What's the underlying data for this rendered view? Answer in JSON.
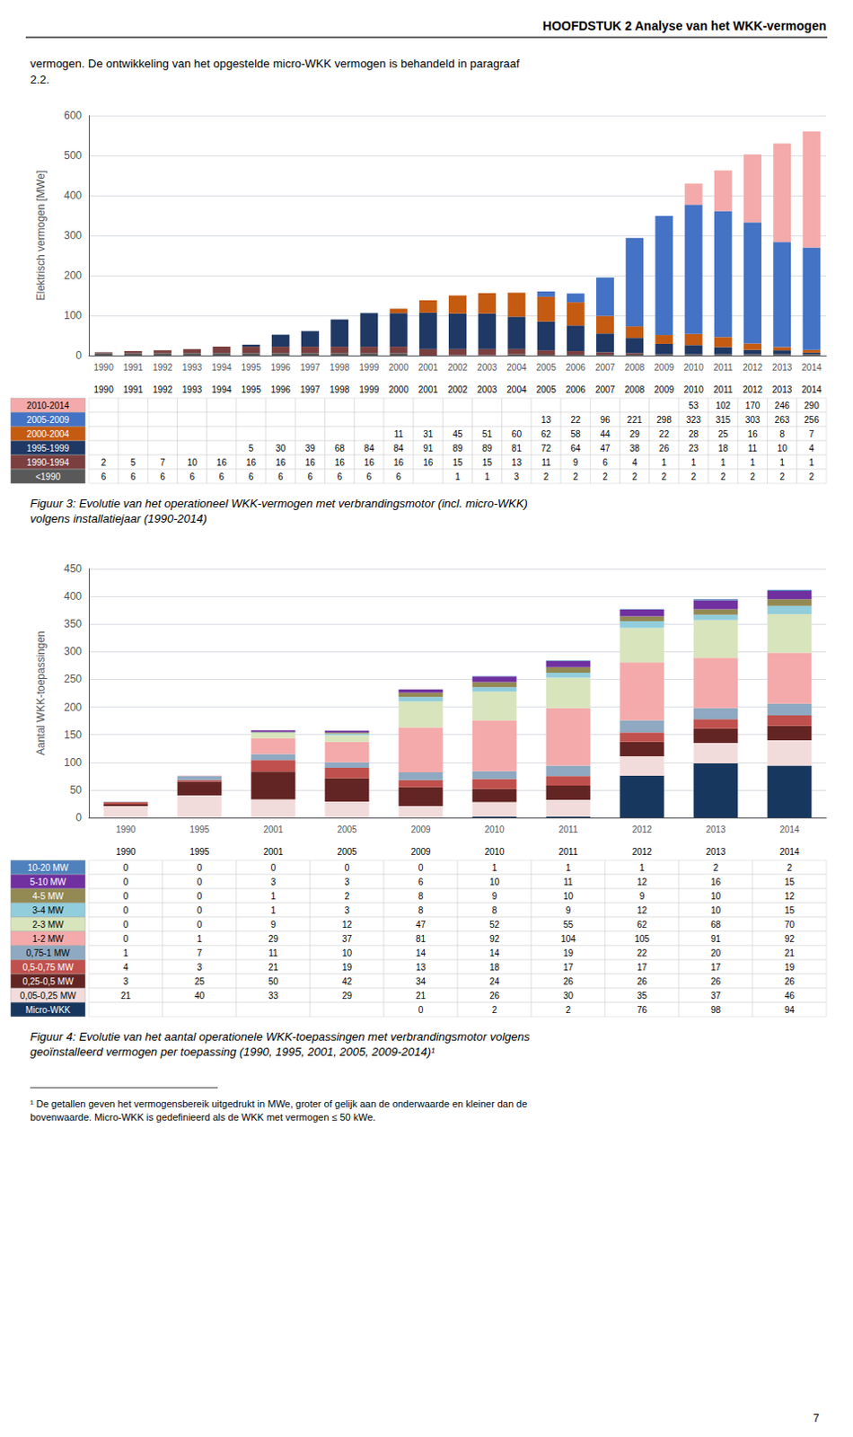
{
  "chart_data": [
    {
      "type": "bar",
      "title": "Figuur 3: Evolutie van het operationeel WKK-vermogen met verbrandingsmotor (incl. micro-WKK)\nvolgens installatiejaar (1990-2014)",
      "annotations": [
        "HOOFDSTUK 2 Analyse van het WKK-vermogen",
        "vermogen. De ontwikkeling van het opgestelde micro-WKK vermogen is behandeld in paragraaf\n2.2."
      ],
      "ylabel": "Elektrisch vermogen [MWe]",
      "categories": [
        "1990",
        "1991",
        "1992",
        "1993",
        "1994",
        "1995",
        "1996",
        "1997",
        "1998",
        "1999",
        "2000",
        "2001",
        "2002",
        "2003",
        "2004",
        "2005",
        "2006",
        "2007",
        "2008",
        "2009",
        "2010",
        "2011",
        "2012",
        "2013",
        "2014"
      ],
      "series": [
        {
          "name": "<1990",
          "color": "#595959",
          "values": [
            6,
            6,
            6,
            6,
            6,
            6,
            6,
            6,
            6,
            6,
            6,
            0,
            1,
            1,
            3,
            2,
            2,
            2,
            2,
            2,
            2,
            2,
            2,
            2,
            2
          ],
          "value_labels": [
            "6",
            "6",
            "6",
            "6",
            "6",
            "6",
            "6",
            "6",
            "6",
            "6",
            "6",
            null,
            "1",
            "1",
            "3",
            "2",
            "2",
            "2",
            "2",
            "2",
            "2",
            "2",
            "2",
            "2",
            "2"
          ]
        },
        {
          "name": "1990-1994",
          "color": "#7B3F3F",
          "values": [
            2,
            5,
            7,
            10,
            16,
            16,
            16,
            16,
            16,
            16,
            16,
            16,
            15,
            15,
            13,
            11,
            9,
            6,
            4,
            1,
            1,
            1,
            1,
            1,
            1
          ]
        },
        {
          "name": "1995-1999",
          "color": "#1F3864",
          "values": [
            0,
            0,
            0,
            0,
            0,
            5,
            30,
            39,
            68,
            84,
            84,
            91,
            89,
            89,
            81,
            72,
            64,
            47,
            38,
            26,
            23,
            18,
            11,
            10,
            4
          ],
          "value_labels": [
            null,
            null,
            null,
            null,
            null,
            "5",
            "30",
            "39",
            "68",
            "84",
            "84",
            "91",
            "89",
            "89",
            "81",
            "72",
            "64",
            "47",
            "38",
            "26",
            "23",
            "18",
            "11",
            "10",
            "4"
          ]
        },
        {
          "name": "2000-2004",
          "color": "#C55A11",
          "values": [
            0,
            0,
            0,
            0,
            0,
            0,
            0,
            0,
            0,
            0,
            11,
            31,
            45,
            51,
            60,
            62,
            58,
            44,
            29,
            22,
            28,
            25,
            16,
            8,
            7
          ],
          "value_labels": [
            null,
            null,
            null,
            null,
            null,
            null,
            null,
            null,
            null,
            null,
            "11",
            "31",
            "45",
            "51",
            "60",
            "62",
            "58",
            "44",
            "29",
            "22",
            "28",
            "25",
            "16",
            "8",
            "7"
          ]
        },
        {
          "name": "2005-2009",
          "color": "#4472C4",
          "values": [
            0,
            0,
            0,
            0,
            0,
            0,
            0,
            0,
            0,
            0,
            0,
            0,
            0,
            0,
            0,
            13,
            22,
            96,
            221,
            298,
            323,
            315,
            303,
            263,
            256
          ],
          "value_labels": [
            null,
            null,
            null,
            null,
            null,
            null,
            null,
            null,
            null,
            null,
            null,
            null,
            null,
            null,
            null,
            "13",
            "22",
            "96",
            "221",
            "298",
            "323",
            "315",
            "303",
            "263",
            "256"
          ]
        },
        {
          "name": "2010-2014",
          "color": "#F4AAAA",
          "values": [
            0,
            0,
            0,
            0,
            0,
            0,
            0,
            0,
            0,
            0,
            0,
            0,
            0,
            0,
            0,
            0,
            0,
            0,
            0,
            0,
            53,
            102,
            170,
            246,
            290
          ],
          "value_labels": [
            null,
            null,
            null,
            null,
            null,
            null,
            null,
            null,
            null,
            null,
            null,
            null,
            null,
            null,
            null,
            null,
            null,
            null,
            null,
            null,
            "53",
            "102",
            "170",
            "246",
            "290"
          ]
        }
      ],
      "ylim": [
        0,
        600
      ],
      "yticks": [
        0,
        100,
        200,
        300,
        400,
        500,
        600
      ],
      "stacked": true,
      "grid": true
    },
    {
      "type": "bar",
      "title": "Figuur 4: Evolutie van het aantal operationele WKK-toepassingen met verbrandingsmotor volgens\ngeoïnstalleerd vermogen per toepassing (1990, 1995, 2001, 2005, 2009-2014)¹",
      "annotations": [
        "¹ De getallen geven het vermogensbereik uitgedrukt in MWe, groter of gelijk aan de onderwaarde en kleiner dan de\nbovenwaarde. Micro-WKK is gedefinieerd als de WKK met vermogen ≤ 50 kWe.",
        "7"
      ],
      "ylabel": "Aantal WKK-toepassingen",
      "categories": [
        "1990",
        "1995",
        "2001",
        "2005",
        "2009",
        "2010",
        "2011",
        "2012",
        "2013",
        "2014"
      ],
      "series": [
        {
          "name": "Micro-WKK",
          "color": "#17375E",
          "values": [
            0,
            0,
            0,
            0,
            0,
            2,
            2,
            76,
            98,
            94
          ],
          "value_labels": [
            null,
            null,
            null,
            null,
            "0",
            "2",
            "2",
            "76",
            "98",
            "94"
          ]
        },
        {
          "name": "0,05-0,25 MW",
          "color": "#F2DCDB",
          "values": [
            21,
            40,
            33,
            29,
            21,
            26,
            30,
            35,
            37,
            46
          ]
        },
        {
          "name": "0,25-0,5 MW",
          "color": "#632523",
          "values": [
            3,
            25,
            50,
            42,
            34,
            24,
            26,
            26,
            26,
            26
          ]
        },
        {
          "name": "0,5-0,75 MW",
          "color": "#C0504D",
          "values": [
            4,
            3,
            21,
            19,
            13,
            18,
            17,
            17,
            17,
            19
          ]
        },
        {
          "name": "0,75-1 MW",
          "color": "#8EA9C1",
          "values": [
            1,
            7,
            11,
            10,
            14,
            14,
            19,
            22,
            20,
            21
          ]
        },
        {
          "name": "1-2 MW",
          "color": "#F4AAAA",
          "values": [
            0,
            1,
            29,
            37,
            81,
            92,
            104,
            105,
            91,
            92
          ]
        },
        {
          "name": "2-3 MW",
          "color": "#D7E4BC",
          "values": [
            0,
            0,
            9,
            12,
            47,
            52,
            55,
            62,
            68,
            70
          ]
        },
        {
          "name": "3-4 MW",
          "color": "#92CDDC",
          "values": [
            0,
            0,
            1,
            3,
            8,
            8,
            9,
            12,
            10,
            15
          ]
        },
        {
          "name": "4-5 MW",
          "color": "#938953",
          "values": [
            0,
            0,
            1,
            2,
            8,
            9,
            10,
            9,
            10,
            12
          ]
        },
        {
          "name": "5-10 MW",
          "color": "#7030A0",
          "values": [
            0,
            0,
            3,
            3,
            6,
            10,
            11,
            12,
            16,
            15
          ]
        },
        {
          "name": "10-20 MW",
          "color": "#4F81BD",
          "values": [
            0,
            0,
            0,
            0,
            0,
            1,
            1,
            1,
            2,
            2
          ]
        }
      ],
      "ylim": [
        0,
        450
      ],
      "yticks": [
        0,
        50,
        100,
        150,
        200,
        250,
        300,
        350,
        400,
        450
      ],
      "stacked": true,
      "grid": true
    }
  ]
}
